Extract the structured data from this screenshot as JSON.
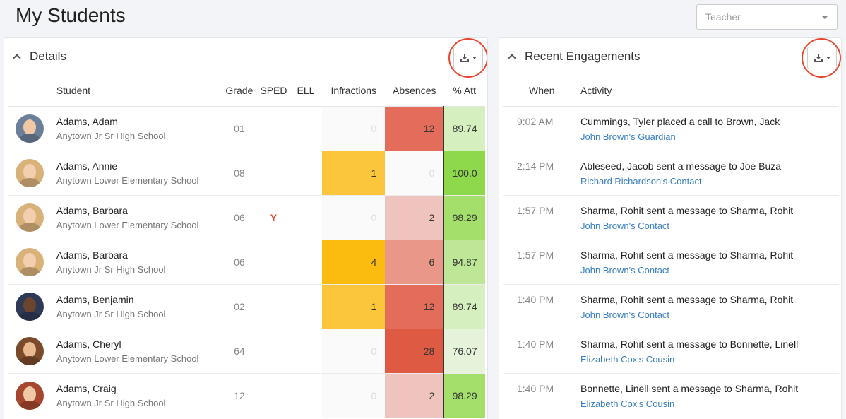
{
  "page": {
    "title": "My Students"
  },
  "teacher_select": {
    "placeholder": "Teacher"
  },
  "details": {
    "title": "Details",
    "columns": {
      "student": "Student",
      "grade": "Grade",
      "sped": "SPED",
      "ell": "ELL",
      "infractions": "Infractions",
      "absences": "Absences",
      "att": "% Att"
    },
    "rows": [
      {
        "name": "Adams, Adam",
        "school": "Anytown Jr Sr High School",
        "grade": "01",
        "sped": "",
        "ell": "",
        "infractions": "0",
        "absences": "12",
        "att": "89.74",
        "inf_color": "#fafafa",
        "abs_color": "#e36d5a",
        "att_color": "#d6efbf",
        "avatar_skin": "#f0c9a4",
        "avatar_bg": "#6b7f9a"
      },
      {
        "name": "Adams, Annie",
        "school": "Anytown Lower Elementary School",
        "grade": "08",
        "sped": "",
        "ell": "",
        "infractions": "1",
        "absences": "0",
        "att": "100.0",
        "inf_color": "#fbc63b",
        "abs_color": "#fafafa",
        "att_color": "#8ed84b",
        "avatar_skin": "#f4cfaf",
        "avatar_bg": "#d9b27a"
      },
      {
        "name": "Adams, Barbara",
        "school": "Anytown Lower Elementary School",
        "grade": "06",
        "sped": "Y",
        "ell": "",
        "infractions": "0",
        "absences": "2",
        "att": "98.29",
        "inf_color": "#fafafa",
        "abs_color": "#efc4be",
        "att_color": "#a3df6a",
        "avatar_skin": "#f4cfaf",
        "avatar_bg": "#d9b27a"
      },
      {
        "name": "Adams, Barbara",
        "school": "Anytown Jr Sr High School",
        "grade": "06",
        "sped": "",
        "ell": "",
        "infractions": "4",
        "absences": "6",
        "att": "94.87",
        "inf_color": "#fbbc0f",
        "abs_color": "#e99788",
        "att_color": "#bde797",
        "avatar_skin": "#f4cfaf",
        "avatar_bg": "#d9b27a"
      },
      {
        "name": "Adams, Benjamin",
        "school": "Anytown Jr Sr High School",
        "grade": "02",
        "sped": "",
        "ell": "",
        "infractions": "1",
        "absences": "12",
        "att": "89.74",
        "inf_color": "#fbc63b",
        "abs_color": "#e36d5a",
        "att_color": "#d6efbf",
        "avatar_skin": "#6b4530",
        "avatar_bg": "#2e3a55"
      },
      {
        "name": "Adams, Cheryl",
        "school": "Anytown Lower Elementary School",
        "grade": "64",
        "sped": "",
        "ell": "",
        "infractions": "0",
        "absences": "28",
        "att": "76.07",
        "inf_color": "#fafafa",
        "abs_color": "#de5a43",
        "att_color": "#e6f3db",
        "avatar_skin": "#e9b98f",
        "avatar_bg": "#7a4a2a"
      },
      {
        "name": "Adams, Craig",
        "school": "Anytown Jr Sr High School",
        "grade": "12",
        "sped": "",
        "ell": "",
        "infractions": "0",
        "absences": "2",
        "att": "98.29",
        "inf_color": "#fafafa",
        "abs_color": "#efc4be",
        "att_color": "#a3df6a",
        "avatar_skin": "#f0c9a4",
        "avatar_bg": "#a6462f"
      }
    ]
  },
  "engagements": {
    "title": "Recent Engagements",
    "columns": {
      "when": "When",
      "activity": "Activity"
    },
    "rows": [
      {
        "when": "9:02 AM",
        "activity": "Cummings, Tyler placed a call to Brown, Jack",
        "contact": "John Brown's Guardian"
      },
      {
        "when": "2:14 PM",
        "activity": "Ableseed, Jacob sent a message to Joe Buza",
        "contact": "Richard Richardson's Contact"
      },
      {
        "when": "1:57 PM",
        "activity": "Sharma, Rohit sent a message to Sharma, Rohit",
        "contact": "John Brown's Contact"
      },
      {
        "when": "1:57 PM",
        "activity": "Sharma, Rohit sent a message to Sharma, Rohit",
        "contact": "John Brown's Contact"
      },
      {
        "when": "1:40 PM",
        "activity": "Sharma, Rohit sent a message to Sharma, Rohit",
        "contact": "John Brown's Contact"
      },
      {
        "when": "1:40 PM",
        "activity": "Sharma, Rohit sent a message to Bonnette, Linell",
        "contact": "Elizabeth Cox's Cousin"
      },
      {
        "when": "1:40 PM",
        "activity": "Bonnette, Linell sent a message to Sharma, Rohit",
        "contact": "Elizabeth Cox's Cousin"
      }
    ]
  },
  "icons": {
    "download": "download-icon",
    "collapse": "chevron-up-icon",
    "select_caret": "chevron-down-icon"
  }
}
